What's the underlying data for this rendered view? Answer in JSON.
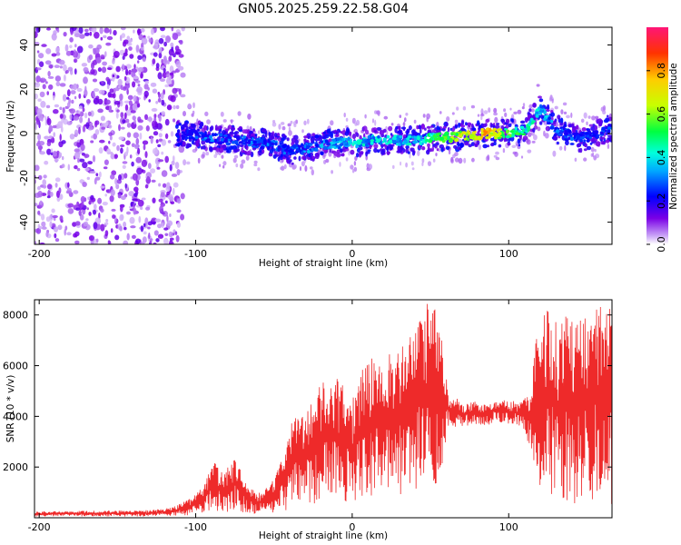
{
  "title": "GN05.2025.259.22.58.G04",
  "colors": {
    "snr_line": "#ee2a2a",
    "axis": "#000000",
    "background": "#ffffff"
  },
  "chart_data": [
    {
      "type": "heatmap",
      "name": "spectrogram",
      "xlabel": "Height of straight line (km)",
      "ylabel": "Frequency (Hz)",
      "xlim": [
        -203,
        166
      ],
      "ylim": [
        -50,
        48
      ],
      "xticks": [
        -200,
        -100,
        0,
        100
      ],
      "yticks": [
        -40,
        -20,
        0,
        20,
        40
      ],
      "colorbar": {
        "label": "Normalized spectral amplitude",
        "range": [
          0,
          1
        ],
        "ticks": [
          0.0,
          0.2,
          0.4,
          0.6,
          0.8
        ],
        "colormap": "rainbow"
      },
      "noise_region_x": [
        -203,
        -108
      ],
      "ridge": {
        "x": [
          -112,
          -100,
          -90,
          -75,
          -50,
          -40,
          -20,
          0,
          20,
          40,
          55,
          70,
          85,
          100,
          110,
          115,
          120,
          130,
          145,
          155,
          166
        ],
        "frequency": [
          -1,
          0,
          -2,
          -3,
          -5,
          -8,
          -5,
          -4,
          -3,
          -3,
          -2,
          -1,
          0,
          0,
          1,
          6,
          11,
          2,
          -2,
          -1,
          3
        ],
        "amplitude": [
          0.25,
          0.3,
          0.35,
          0.3,
          0.35,
          0.3,
          0.4,
          0.45,
          0.45,
          0.45,
          0.6,
          0.7,
          0.85,
          0.6,
          0.55,
          0.5,
          0.45,
          0.35,
          0.3,
          0.3,
          0.3
        ]
      }
    },
    {
      "type": "line",
      "name": "snr",
      "xlabel": "Height of straight line (km)",
      "ylabel": "SNR (10 * v/v)",
      "xlim": [
        -203,
        166
      ],
      "ylim": [
        0,
        8600
      ],
      "xticks": [
        -200,
        -100,
        0,
        100
      ],
      "yticks": [
        2000,
        4000,
        6000,
        8000
      ],
      "envelope": {
        "x": [
          -203,
          -130,
          -115,
          -102,
          -95,
          -88,
          -82,
          -75,
          -68,
          -62,
          -55,
          -48,
          -42,
          -38,
          -32,
          -28,
          -20,
          -10,
          0,
          10,
          20,
          30,
          40,
          48,
          55,
          62,
          68,
          72,
          78,
          85,
          92,
          100,
          108,
          114,
          118,
          125,
          132,
          140,
          148,
          155,
          160,
          166
        ],
        "upper": [
          250,
          300,
          400,
          800,
          1300,
          2200,
          1800,
          2400,
          1500,
          1000,
          1200,
          1800,
          2800,
          4000,
          4200,
          4300,
          5300,
          5500,
          4800,
          6500,
          6200,
          7000,
          7200,
          8600,
          8100,
          4700,
          4700,
          4500,
          4600,
          4500,
          4700,
          4600,
          4700,
          4900,
          8400,
          8200,
          7600,
          8200,
          7800,
          8500,
          8300,
          8500
        ],
        "lower": [
          50,
          50,
          80,
          100,
          200,
          300,
          200,
          300,
          150,
          100,
          120,
          200,
          300,
          500,
          700,
          500,
          600,
          800,
          500,
          900,
          700,
          900,
          1000,
          1200,
          1000,
          3700,
          3500,
          3600,
          3700,
          3600,
          3800,
          3700,
          3500,
          2800,
          1400,
          900,
          800,
          500,
          700,
          600,
          500,
          500
        ]
      }
    }
  ]
}
